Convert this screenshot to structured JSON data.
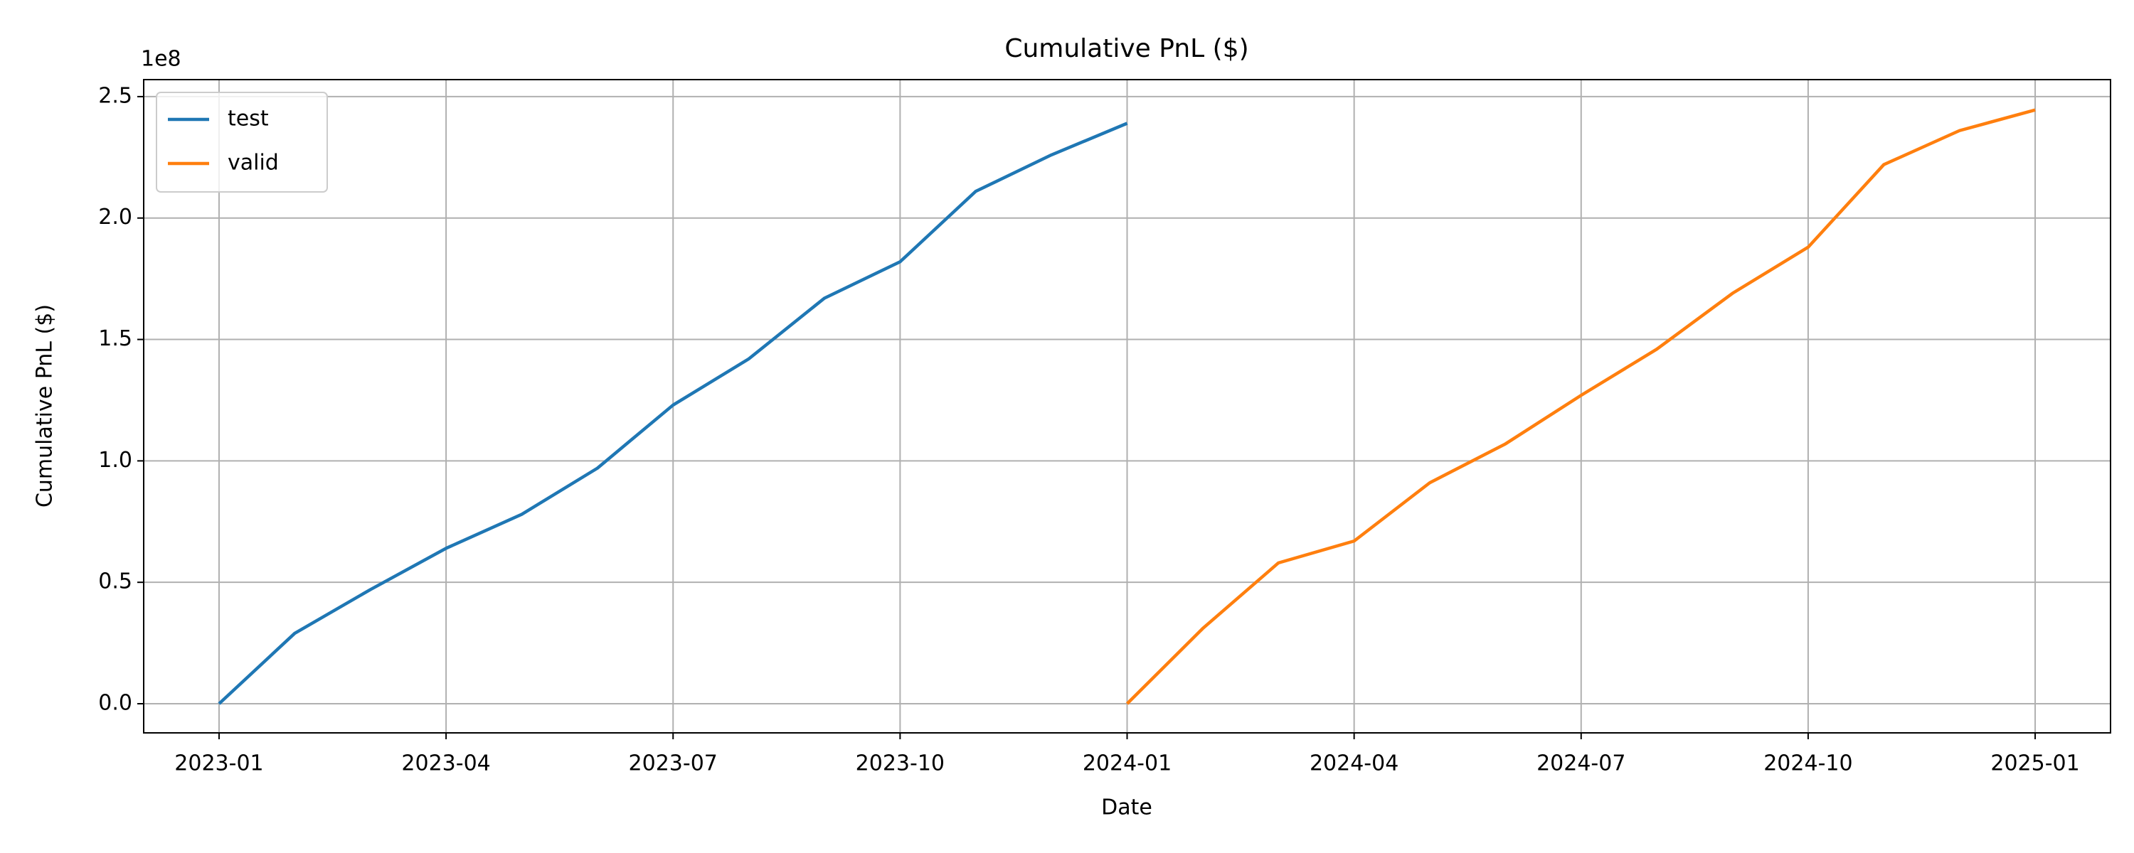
{
  "chart_data": {
    "type": "line",
    "title": "Cumulative PnL ($)",
    "x_label": "Date",
    "y_label": "Cumulative PnL ($)",
    "y_offset_label": "1e8",
    "series": [
      {
        "name": "test",
        "color": "#1f77b4",
        "x": [
          "2023-01",
          "2023-02",
          "2023-03",
          "2023-04",
          "2023-05",
          "2023-06",
          "2023-07",
          "2023-08",
          "2023-09",
          "2023-10",
          "2023-11",
          "2023-12",
          "2024-01"
        ],
        "values": [
          0,
          0.29,
          0.47,
          0.64,
          0.78,
          0.97,
          1.23,
          1.42,
          1.67,
          1.82,
          2.11,
          2.26,
          2.39
        ]
      },
      {
        "name": "valid",
        "color": "#ff7f0e",
        "x": [
          "2024-01",
          "2024-02",
          "2024-03",
          "2024-04",
          "2024-05",
          "2024-06",
          "2024-07",
          "2024-08",
          "2024-09",
          "2024-10",
          "2024-11",
          "2024-12",
          "2025-01"
        ],
        "values": [
          0,
          0.31,
          0.58,
          0.67,
          0.91,
          1.07,
          1.27,
          1.46,
          1.69,
          1.88,
          2.22,
          2.36,
          2.445
        ]
      }
    ],
    "xlim": [
      "2023-01",
      "2025-01"
    ],
    "xticks": [
      "2023-01",
      "2023-04",
      "2023-07",
      "2023-10",
      "2024-01",
      "2024-04",
      "2024-07",
      "2024-10",
      "2025-01"
    ],
    "ylim": [
      -0.12,
      2.57
    ],
    "yticks": [
      {
        "value": 0,
        "label": "0.0"
      },
      {
        "value": 0.5,
        "label": "0.5"
      },
      {
        "value": 1,
        "label": "1.0"
      },
      {
        "value": 1.5,
        "label": "1.5"
      },
      {
        "value": 2,
        "label": "2.0"
      },
      {
        "value": 2.5,
        "label": "2.5"
      }
    ],
    "grid": true,
    "legend": "upper-left"
  }
}
